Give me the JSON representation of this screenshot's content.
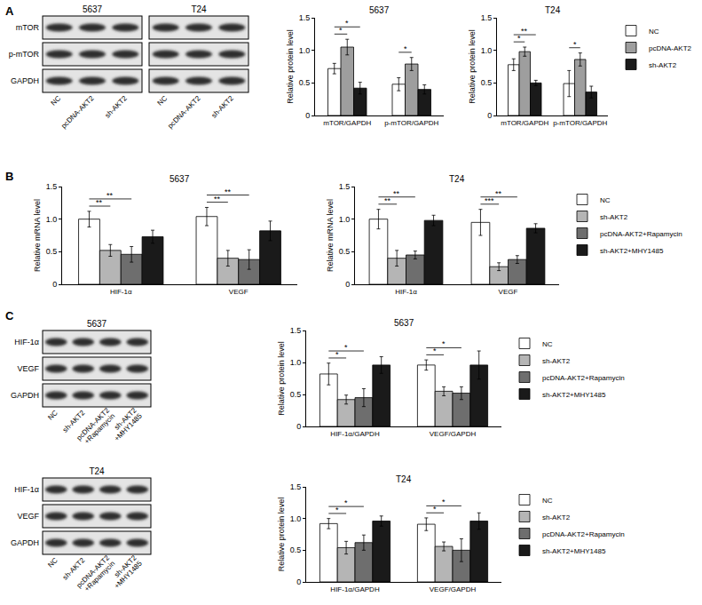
{
  "panel_labels": [
    "A",
    "B",
    "C"
  ],
  "blot_groups": [
    {
      "rows": [
        "mTOR",
        "p-mTOR",
        "GAPDH"
      ],
      "blots": [
        {
          "title": "5637",
          "lanes": [
            "NC",
            "pcDNA-AKT2",
            "sh-AKT2"
          ]
        },
        {
          "title": "T24",
          "lanes": [
            "NC",
            "pcDNA-AKT2",
            "sh-AKT2"
          ]
        }
      ]
    },
    {
      "rows": [
        "HIF-1α",
        "VEGF",
        "GAPDH"
      ],
      "blots": [
        {
          "title": "5637",
          "lanes": [
            "NC",
            "sh-AKT2",
            "pcDNA-AKT2+Rapamycin",
            "sh-AKT2+MHY1485"
          ]
        }
      ]
    },
    {
      "rows": [
        "HIF-1α",
        "VEGF",
        "GAPDH"
      ],
      "blots": [
        {
          "title": "T24",
          "lanes": [
            "NC",
            "sh-AKT2",
            "pcDNA-AKT2+Rapamycin",
            "sh-AKT2+MHY1485"
          ]
        }
      ]
    }
  ],
  "chart_data": [
    {
      "type": "bar",
      "title": "5637",
      "ylabel": "Relative protein level",
      "categories": [
        "mTOR/GAPDH",
        "p-mTOR/GAPDH"
      ],
      "series": [
        {
          "name": "NC",
          "color": "#ffffff",
          "values": [
            0.72,
            0.48
          ],
          "errors": [
            0.08,
            0.1
          ]
        },
        {
          "name": "pcDNA-AKT2",
          "color": "#9e9e9e",
          "values": [
            1.05,
            0.79
          ],
          "errors": [
            0.12,
            0.1
          ]
        },
        {
          "name": "sh-AKT2",
          "color": "#1a1a1a",
          "values": [
            0.42,
            0.4
          ],
          "errors": [
            0.09,
            0.07
          ]
        }
      ],
      "significance": [
        {
          "category": "mTOR/GAPDH",
          "from": "NC",
          "to": "pcDNA-AKT2",
          "label": "*"
        },
        {
          "category": "mTOR/GAPDH",
          "from": "NC",
          "to": "sh-AKT2",
          "label": "*"
        },
        {
          "category": "p-mTOR/GAPDH",
          "from": "NC",
          "to": "pcDNA-AKT2",
          "label": "*"
        }
      ],
      "ylim": [
        0,
        1.5
      ],
      "yticks": [
        0,
        0.5,
        {
          "value": 1,
          "label": "1.0"
        },
        1.5
      ],
      "grid": false,
      "legend": "none"
    },
    {
      "type": "bar",
      "title": "T24",
      "ylabel": "Relative protein level",
      "categories": [
        "mTOR/GAPDH",
        "p-mTOR/GAPDH"
      ],
      "series": [
        {
          "name": "NC",
          "color": "#ffffff",
          "values": [
            0.78,
            0.49
          ],
          "errors": [
            0.09,
            0.2
          ]
        },
        {
          "name": "pcDNA-AKT2",
          "color": "#9e9e9e",
          "values": [
            0.98,
            0.86
          ],
          "errors": [
            0.07,
            0.1
          ]
        },
        {
          "name": "sh-AKT2",
          "color": "#1a1a1a",
          "values": [
            0.5,
            0.36
          ],
          "errors": [
            0.04,
            0.09
          ]
        }
      ],
      "significance": [
        {
          "category": "mTOR/GAPDH",
          "from": "NC",
          "to": "pcDNA-AKT2",
          "label": "*"
        },
        {
          "category": "mTOR/GAPDH",
          "from": "NC",
          "to": "sh-AKT2",
          "label": "**"
        },
        {
          "category": "p-mTOR/GAPDH",
          "from": "NC",
          "to": "pcDNA-AKT2",
          "label": "*"
        }
      ],
      "ylim": [
        0,
        1.5
      ],
      "yticks": [
        0,
        0.5,
        {
          "value": 1,
          "label": "1.0"
        },
        1.5
      ],
      "grid": false,
      "legend": "right"
    },
    {
      "type": "bar",
      "title": "5637",
      "ylabel": "Relative mRNA level",
      "categories": [
        "HIF-1α",
        "VEGF"
      ],
      "series": [
        {
          "name": "NC",
          "color": "#ffffff",
          "values": [
            1.0,
            1.04
          ],
          "errors": [
            0.12,
            0.14
          ]
        },
        {
          "name": "sh-AKT2",
          "color": "#b5b5b5",
          "values": [
            0.52,
            0.4
          ],
          "errors": [
            0.09,
            0.12
          ]
        },
        {
          "name": "pcDNA-AKT2+Rapamycin",
          "color": "#6e6e6e",
          "values": [
            0.46,
            0.38
          ],
          "errors": [
            0.12,
            0.15
          ]
        },
        {
          "name": "sh-AKT2+MHY1485",
          "color": "#1a1a1a",
          "values": [
            0.73,
            0.82
          ],
          "errors": [
            0.1,
            0.15
          ]
        }
      ],
      "significance": [
        {
          "category": "HIF-1α",
          "from": "NC",
          "to": "sh-AKT2",
          "label": "**"
        },
        {
          "category": "HIF-1α",
          "from": "NC",
          "to": "pcDNA-AKT2+Rapamycin",
          "label": "**"
        },
        {
          "category": "VEGF",
          "from": "NC",
          "to": "sh-AKT2",
          "label": "**"
        },
        {
          "category": "VEGF",
          "from": "NC",
          "to": "pcDNA-AKT2+Rapamycin",
          "label": "**"
        }
      ],
      "ylim": [
        0,
        1.5
      ],
      "yticks": [
        0,
        0.5,
        {
          "value": 1,
          "label": "1.0"
        },
        1.5
      ],
      "grid": false,
      "legend": "none"
    },
    {
      "type": "bar",
      "title": "T24",
      "ylabel": "Relative mRNA level",
      "categories": [
        "HIF-1α",
        "VEGF"
      ],
      "series": [
        {
          "name": "NC",
          "color": "#ffffff",
          "values": [
            1.0,
            0.95
          ],
          "errors": [
            0.15,
            0.2
          ]
        },
        {
          "name": "sh-AKT2",
          "color": "#b5b5b5",
          "values": [
            0.4,
            0.27
          ],
          "errors": [
            0.12,
            0.06
          ]
        },
        {
          "name": "pcDNA-AKT2+Rapamycin",
          "color": "#6e6e6e",
          "values": [
            0.45,
            0.38
          ],
          "errors": [
            0.06,
            0.06
          ]
        },
        {
          "name": "sh-AKT2+MHY1485",
          "color": "#1a1a1a",
          "values": [
            0.98,
            0.86
          ],
          "errors": [
            0.08,
            0.07
          ]
        }
      ],
      "significance": [
        {
          "category": "HIF-1α",
          "from": "NC",
          "to": "sh-AKT2",
          "label": "**"
        },
        {
          "category": "HIF-1α",
          "from": "NC",
          "to": "pcDNA-AKT2+Rapamycin",
          "label": "**"
        },
        {
          "category": "VEGF",
          "from": "NC",
          "to": "sh-AKT2",
          "label": "***"
        },
        {
          "category": "VEGF",
          "from": "NC",
          "to": "pcDNA-AKT2+Rapamycin",
          "label": "**"
        }
      ],
      "ylim": [
        0,
        1.5
      ],
      "yticks": [
        0,
        0.5,
        {
          "value": 1,
          "label": "1.0"
        },
        1.5
      ],
      "grid": false,
      "legend": "right"
    },
    {
      "type": "bar",
      "title": "5637",
      "ylabel": "Relative protein level",
      "categories": [
        "HIF-1α/GAPDH",
        "VEGF/GAPDH"
      ],
      "series": [
        {
          "name": "NC",
          "color": "#ffffff",
          "values": [
            0.82,
            0.96
          ],
          "errors": [
            0.17,
            0.08
          ]
        },
        {
          "name": "sh-AKT2",
          "color": "#b5b5b5",
          "values": [
            0.42,
            0.55
          ],
          "errors": [
            0.07,
            0.07
          ]
        },
        {
          "name": "pcDNA-AKT2+Rapamycin",
          "color": "#6e6e6e",
          "values": [
            0.45,
            0.52
          ],
          "errors": [
            0.14,
            0.1
          ]
        },
        {
          "name": "sh-AKT2+MHY1485",
          "color": "#1a1a1a",
          "values": [
            0.96,
            0.96
          ],
          "errors": [
            0.13,
            0.22
          ]
        }
      ],
      "significance": [
        {
          "category": "HIF-1α/GAPDH",
          "from": "NC",
          "to": "sh-AKT2",
          "label": "*"
        },
        {
          "category": "HIF-1α/GAPDH",
          "from": "NC",
          "to": "pcDNA-AKT2+Rapamycin",
          "label": "*"
        },
        {
          "category": "VEGF/GAPDH",
          "from": "NC",
          "to": "sh-AKT2",
          "label": "*"
        },
        {
          "category": "VEGF/GAPDH",
          "from": "NC",
          "to": "pcDNA-AKT2+Rapamycin",
          "label": "*"
        }
      ],
      "ylim": [
        0,
        1.5
      ],
      "yticks": [
        0,
        0.5,
        {
          "value": 1,
          "label": "1.0"
        },
        1.5
      ],
      "grid": false,
      "legend": "right"
    },
    {
      "type": "bar",
      "title": "T24",
      "ylabel": "Relative protein level",
      "categories": [
        "HIF-1α/GAPDH",
        "VEGF/GAPDH"
      ],
      "series": [
        {
          "name": "NC",
          "color": "#ffffff",
          "values": [
            0.92,
            0.91
          ],
          "errors": [
            0.08,
            0.1
          ]
        },
        {
          "name": "sh-AKT2",
          "color": "#b5b5b5",
          "values": [
            0.54,
            0.56
          ],
          "errors": [
            0.1,
            0.07
          ]
        },
        {
          "name": "pcDNA-AKT2+Rapamycin",
          "color": "#6e6e6e",
          "values": [
            0.62,
            0.5
          ],
          "errors": [
            0.12,
            0.18
          ]
        },
        {
          "name": "sh-AKT2+MHY1485",
          "color": "#1a1a1a",
          "values": [
            0.96,
            0.96
          ],
          "errors": [
            0.08,
            0.13
          ]
        }
      ],
      "significance": [
        {
          "category": "HIF-1α/GAPDH",
          "from": "NC",
          "to": "sh-AKT2",
          "label": "*"
        },
        {
          "category": "HIF-1α/GAPDH",
          "from": "NC",
          "to": "pcDNA-AKT2+Rapamycin",
          "label": "*"
        },
        {
          "category": "VEGF/GAPDH",
          "from": "NC",
          "to": "sh-AKT2",
          "label": "*"
        },
        {
          "category": "VEGF/GAPDH",
          "from": "NC",
          "to": "pcDNA-AKT2+Rapamycin",
          "label": "*"
        }
      ],
      "ylim": [
        0,
        1.5
      ],
      "yticks": [
        0,
        0.5,
        {
          "value": 1,
          "label": "1.0"
        },
        1.5
      ],
      "grid": false,
      "legend": "right"
    }
  ]
}
